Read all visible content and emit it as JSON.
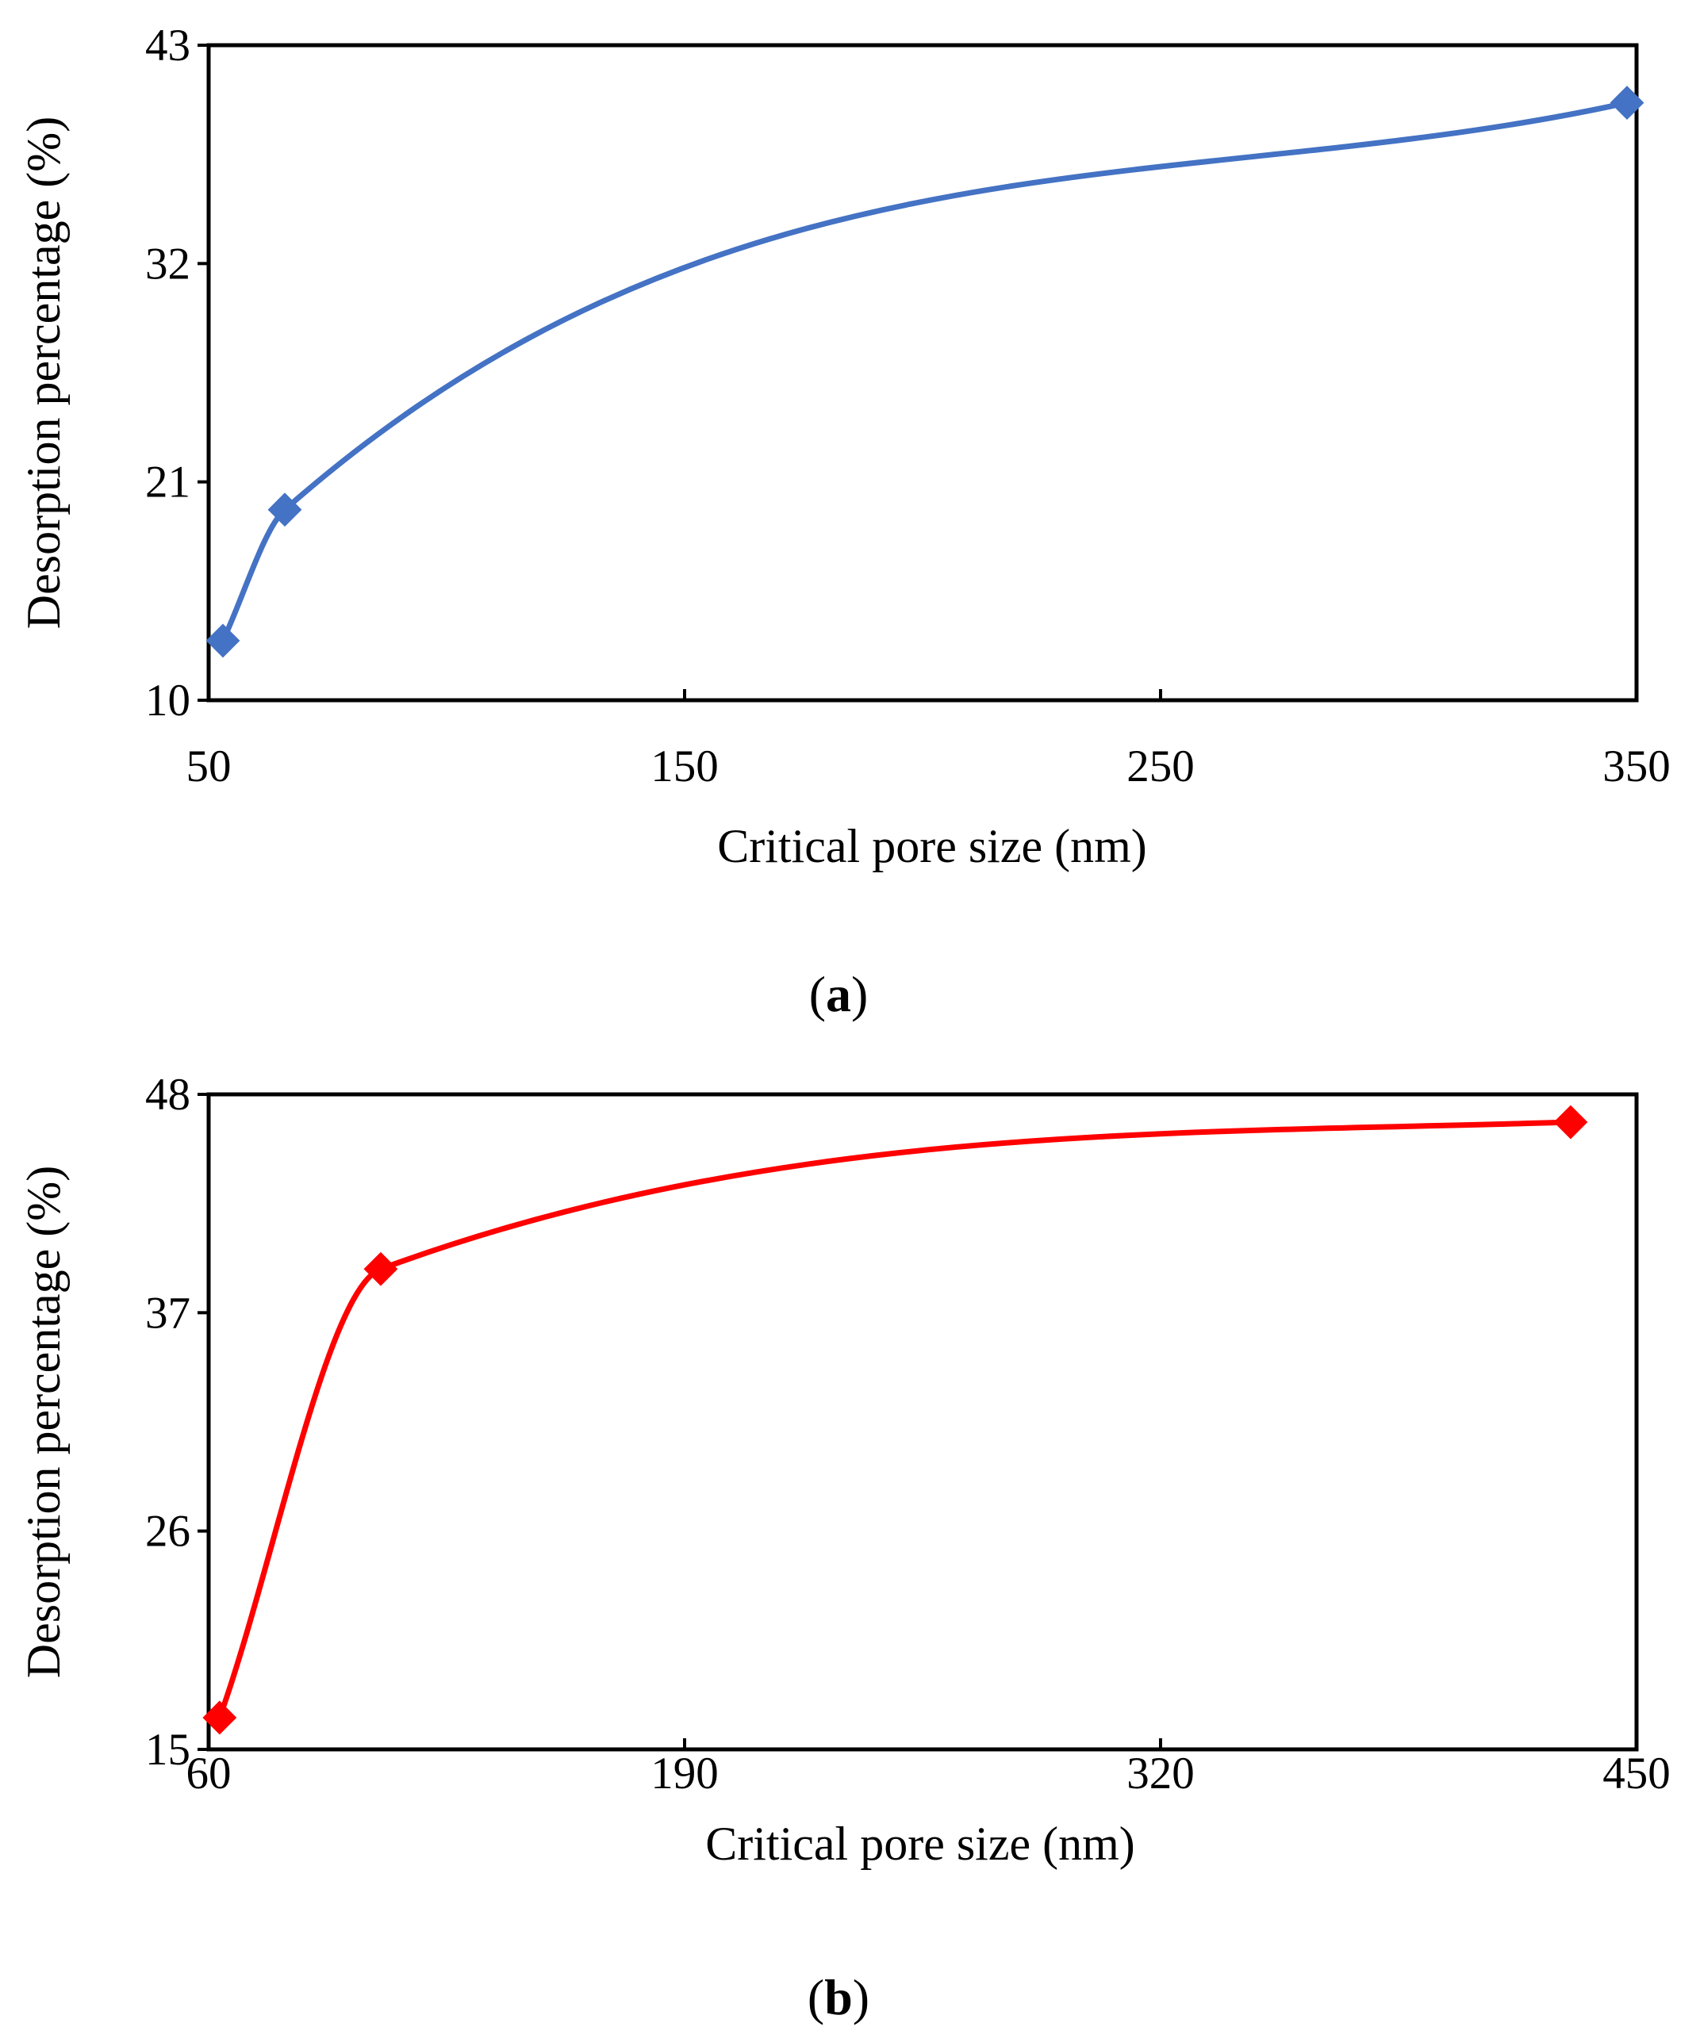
{
  "chart_data": [
    {
      "type": "line",
      "panel_label": "a",
      "title": "",
      "xlabel": "Critical pore size (nm)",
      "ylabel": "Desorption percentage (%)",
      "xlim": [
        50,
        350
      ],
      "ylim": [
        10,
        43
      ],
      "xticks": [
        50,
        150,
        250,
        350
      ],
      "yticks": [
        10,
        21,
        32,
        43
      ],
      "grid": false,
      "legend": "none",
      "series": [
        {
          "name": "a",
          "color": "#4472C4",
          "marker": "diamond",
          "smooth": true,
          "points": [
            {
              "x": 53,
              "y": 13.0
            },
            {
              "x": 66,
              "y": 19.6
            },
            {
              "x": 348,
              "y": 40.1
            }
          ]
        }
      ]
    },
    {
      "type": "line",
      "panel_label": "b",
      "title": "",
      "xlabel": "Critical pore size (nm)",
      "ylabel": "Desorption percentage (%)",
      "xlim": [
        60,
        450
      ],
      "ylim": [
        15,
        48
      ],
      "xticks": [
        60,
        190,
        320,
        450
      ],
      "yticks": [
        15,
        26,
        37,
        48
      ],
      "grid": false,
      "legend": "none",
      "series": [
        {
          "name": "b",
          "color": "#FF0000",
          "marker": "diamond",
          "smooth": true,
          "points": [
            {
              "x": 63,
              "y": 16.6
            },
            {
              "x": 107,
              "y": 39.2
            },
            {
              "x": 432,
              "y": 46.6
            }
          ]
        }
      ]
    }
  ]
}
